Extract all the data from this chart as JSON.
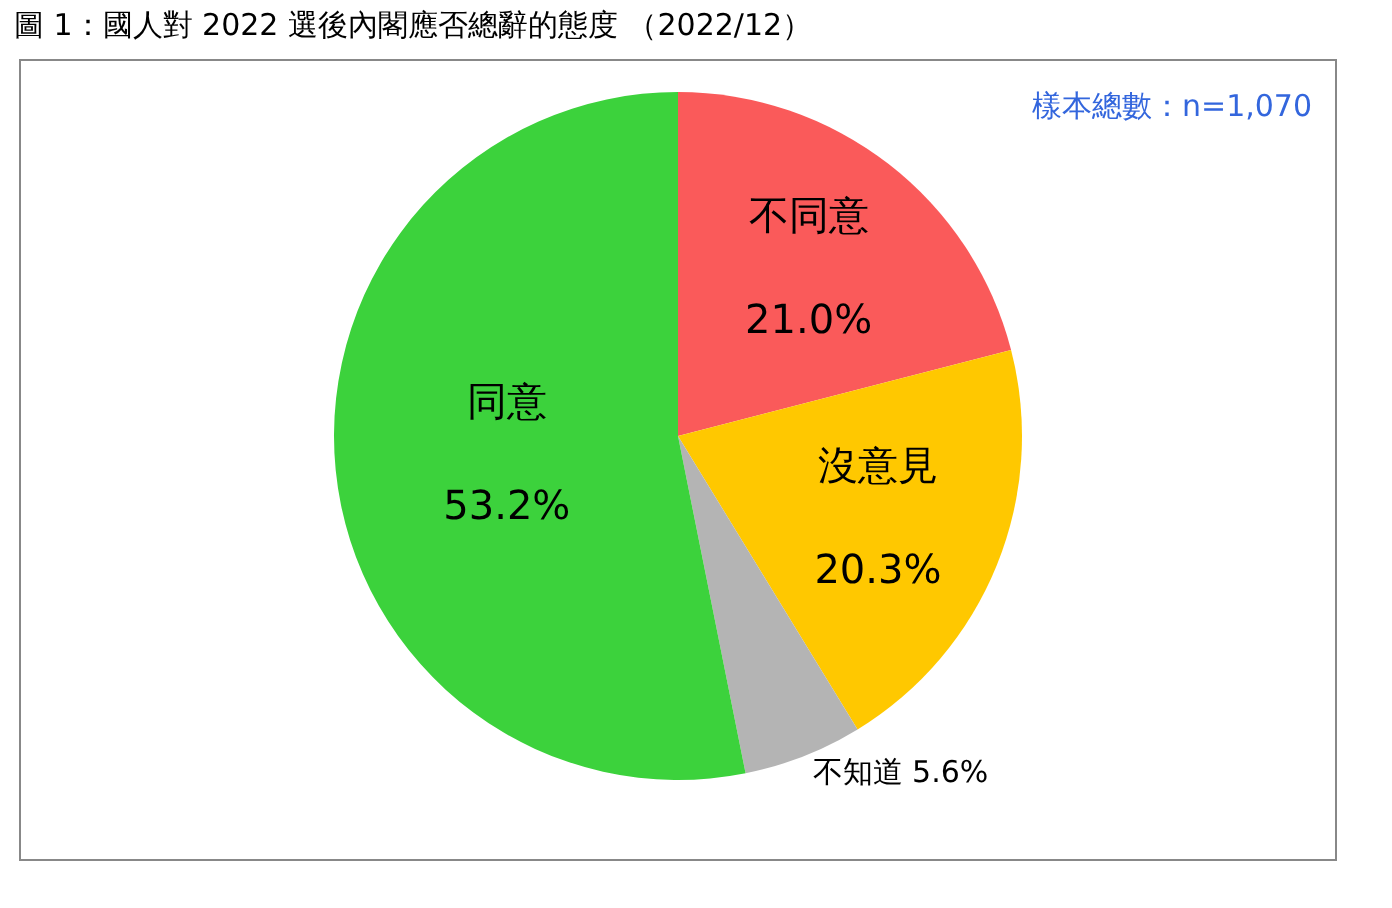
{
  "chart_data": {
    "type": "pie",
    "title": "圖 1：國人對 2022 選後內閣應否總辭的態度 （2022/12）",
    "categories": [
      "不同意",
      "沒意見",
      "不知道",
      "同意"
    ],
    "values": [
      21.0,
      20.3,
      5.6,
      53.2
    ],
    "colors": [
      "#fa5a5a",
      "#ffc800",
      "#b4b4b4",
      "#3cd23c"
    ],
    "value_labels": [
      "21.0%",
      "20.3%",
      "5.6%",
      "53.2%"
    ],
    "legend": false,
    "annotations": [
      "樣本總數：n=1,070"
    ]
  }
}
